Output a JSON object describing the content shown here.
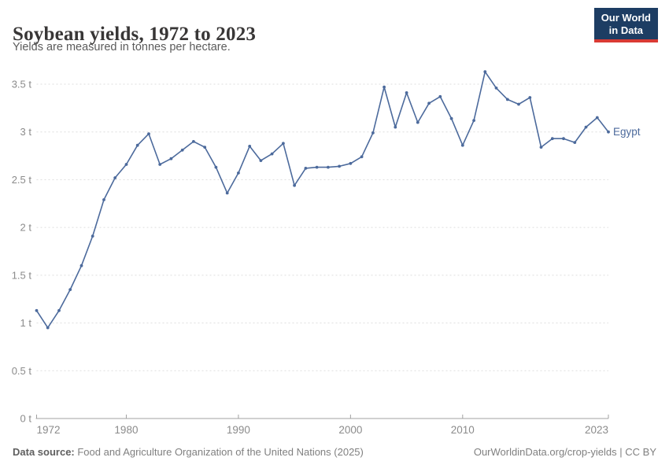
{
  "header": {
    "title": "Soybean yields, 1972 to 2023",
    "subtitle": "Yields are measured in tonnes per hectare.",
    "logo": {
      "line1": "Our World",
      "line2": "in Data"
    }
  },
  "footer": {
    "source_label": "Data source:",
    "source_text": " Food and Agriculture Organization of the United Nations (2025)",
    "link_text": "OurWorldinData.org/crop-yields | CC BY"
  },
  "colors": {
    "series_line": "#4c6a9c",
    "logo_bg": "#1d3d63",
    "logo_accent": "#d93a34",
    "gridline": "#dedede",
    "axis": "#a1a1a1",
    "tick_label": "#8b8b8b"
  },
  "chart_data": {
    "type": "line",
    "title": "Soybean yields, 1972 to 2023",
    "subtitle": "Yields are measured in tonnes per hectare.",
    "unit": "tonnes per hectare",
    "unit_suffix": " t",
    "xlim": [
      1972,
      2023
    ],
    "ylim": [
      0,
      3.5
    ],
    "xticks": [
      1972,
      1980,
      1990,
      2000,
      2010,
      2023
    ],
    "yticks": [
      0,
      0.5,
      1,
      1.5,
      2,
      2.5,
      3,
      3.5
    ],
    "grid": "horizontal-dashed",
    "legend_position": "end-of-line-label",
    "x": [
      1972,
      1973,
      1974,
      1975,
      1976,
      1977,
      1978,
      1979,
      1980,
      1981,
      1982,
      1983,
      1984,
      1985,
      1986,
      1987,
      1988,
      1989,
      1990,
      1991,
      1992,
      1993,
      1994,
      1995,
      1996,
      1997,
      1998,
      1999,
      2000,
      2001,
      2002,
      2003,
      2004,
      2005,
      2006,
      2007,
      2008,
      2009,
      2010,
      2011,
      2012,
      2013,
      2014,
      2015,
      2016,
      2017,
      2018,
      2019,
      2020,
      2021,
      2022,
      2023
    ],
    "series": [
      {
        "name": "Egypt",
        "color": "#4c6a9c",
        "values": [
          1.13,
          0.95,
          1.13,
          1.35,
          1.6,
          1.91,
          2.29,
          2.52,
          2.66,
          2.86,
          2.98,
          2.66,
          2.72,
          2.81,
          2.9,
          2.84,
          2.63,
          2.36,
          2.57,
          2.85,
          2.7,
          2.77,
          2.88,
          2.44,
          2.62,
          2.63,
          2.63,
          2.64,
          2.67,
          2.74,
          2.99,
          3.47,
          3.05,
          3.41,
          3.1,
          3.3,
          3.37,
          3.14,
          2.86,
          3.12,
          3.63,
          3.46,
          3.34,
          3.29,
          3.36,
          2.84,
          2.93,
          2.93,
          2.89,
          3.05,
          3.15,
          3.0
        ]
      }
    ]
  }
}
